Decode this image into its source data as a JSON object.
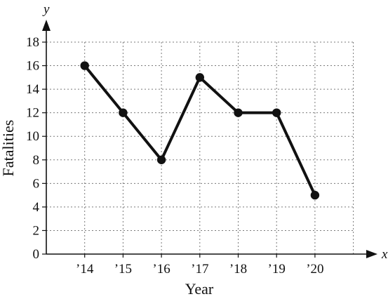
{
  "chart_data": {
    "type": "line",
    "title": "",
    "xlabel": "Year",
    "ylabel": "Fatalities",
    "x_axis_var": "x",
    "y_axis_var": "y",
    "categories": [
      "’14",
      "’15",
      "’16",
      "’17",
      "’18",
      "’19",
      "’20"
    ],
    "values": [
      16,
      12,
      8,
      15,
      12,
      12,
      5
    ],
    "ylim": [
      0,
      18
    ],
    "yticks": [
      0,
      2,
      4,
      6,
      8,
      10,
      12,
      14,
      16,
      18
    ],
    "grid": true,
    "line_color": "#111111",
    "grid_color": "#7a7a7a"
  }
}
